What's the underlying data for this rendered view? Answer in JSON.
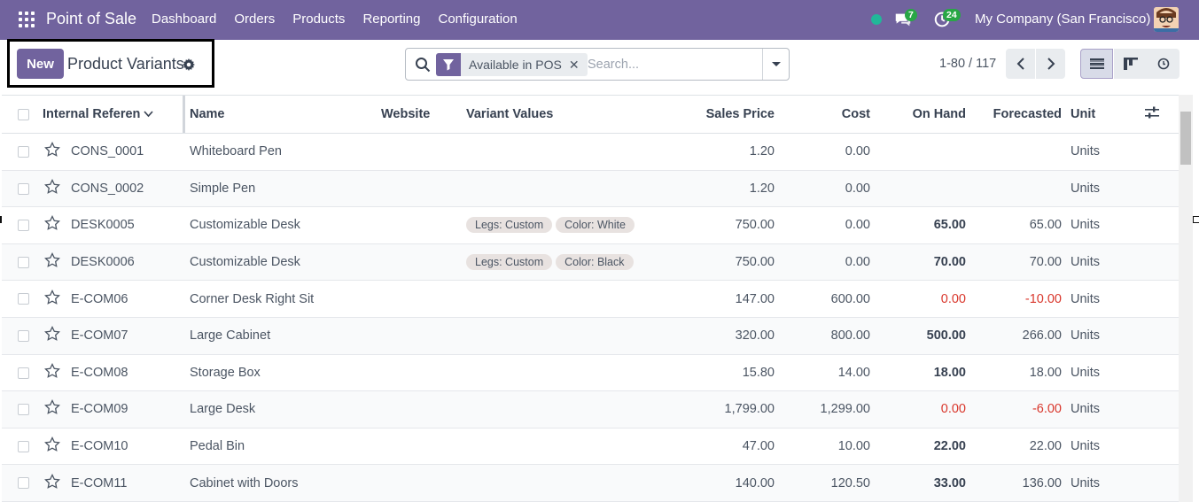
{
  "navbar": {
    "brand": "Point of Sale",
    "menu": [
      "Dashboard",
      "Orders",
      "Products",
      "Reporting",
      "Configuration"
    ],
    "messages_count": "7",
    "activities_count": "24",
    "company": "My Company (San Francisco)",
    "status_color": "#21b799",
    "accent_color": "#71639e"
  },
  "control": {
    "new_label": "New",
    "title": "Product Variants",
    "facet_label": "Available in POS",
    "facet_remove": "✕",
    "search_placeholder": "Search...",
    "pager": "1-80 / 117"
  },
  "table": {
    "headers": {
      "ref": "Internal Referen",
      "name": "Name",
      "website": "Website",
      "variants": "Variant Values",
      "price": "Sales Price",
      "cost": "Cost",
      "onhand": "On Hand",
      "forecast": "Forecasted",
      "unit": "Unit"
    },
    "rows": [
      {
        "ref": "CONS_0001",
        "name": "Whiteboard Pen",
        "tags": [],
        "price": "1.20",
        "cost": "0.00",
        "onhand": "",
        "forecast": "",
        "unit": "Units",
        "neg": false
      },
      {
        "ref": "CONS_0002",
        "name": "Simple Pen",
        "tags": [],
        "price": "1.20",
        "cost": "0.00",
        "onhand": "",
        "forecast": "",
        "unit": "Units",
        "neg": false
      },
      {
        "ref": "DESK0005",
        "name": "Customizable Desk",
        "tags": [
          "Legs: Custom",
          "Color: White"
        ],
        "price": "750.00",
        "cost": "0.00",
        "onhand": "65.00",
        "forecast": "65.00",
        "unit": "Units",
        "neg": false
      },
      {
        "ref": "DESK0006",
        "name": "Customizable Desk",
        "tags": [
          "Legs: Custom",
          "Color: Black"
        ],
        "price": "750.00",
        "cost": "0.00",
        "onhand": "70.00",
        "forecast": "70.00",
        "unit": "Units",
        "neg": false
      },
      {
        "ref": "E-COM06",
        "name": "Corner Desk Right Sit",
        "tags": [],
        "price": "147.00",
        "cost": "600.00",
        "onhand": "0.00",
        "forecast": "-10.00",
        "unit": "Units",
        "neg": true
      },
      {
        "ref": "E-COM07",
        "name": "Large Cabinet",
        "tags": [],
        "price": "320.00",
        "cost": "800.00",
        "onhand": "500.00",
        "forecast": "266.00",
        "unit": "Units",
        "neg": false
      },
      {
        "ref": "E-COM08",
        "name": "Storage Box",
        "tags": [],
        "price": "15.80",
        "cost": "14.00",
        "onhand": "18.00",
        "forecast": "18.00",
        "unit": "Units",
        "neg": false
      },
      {
        "ref": "E-COM09",
        "name": "Large Desk",
        "tags": [],
        "price": "1,799.00",
        "cost": "1,299.00",
        "onhand": "0.00",
        "forecast": "-6.00",
        "unit": "Units",
        "neg": true
      },
      {
        "ref": "E-COM10",
        "name": "Pedal Bin",
        "tags": [],
        "price": "47.00",
        "cost": "10.00",
        "onhand": "22.00",
        "forecast": "22.00",
        "unit": "Units",
        "neg": false
      },
      {
        "ref": "E-COM11",
        "name": "Cabinet with Doors",
        "tags": [],
        "price": "140.00",
        "cost": "120.50",
        "onhand": "33.00",
        "forecast": "136.00",
        "unit": "Units",
        "neg": false
      }
    ]
  }
}
